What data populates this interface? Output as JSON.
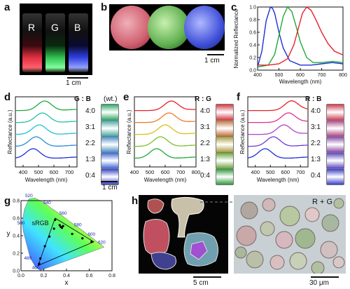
{
  "panels": {
    "a": {
      "letter": "a",
      "vial_labels": [
        "R",
        "G",
        "B"
      ],
      "scale": "1 cm"
    },
    "b": {
      "letter": "b",
      "scale": "1 cm"
    },
    "c": {
      "letter": "c"
    },
    "d": {
      "letter": "d",
      "header": "G : B",
      "unit": "(wt.)",
      "ratios": [
        "4:0",
        "3:1",
        "2:2",
        "1:3",
        "0:4"
      ],
      "scale": "1 cm"
    },
    "e": {
      "letter": "e",
      "header": "R : G",
      "ratios": [
        "4:0",
        "3:1",
        "2:2",
        "1:3",
        "0:4"
      ],
      "scale": "1 cm"
    },
    "f": {
      "letter": "f",
      "header": "R : B",
      "ratios": [
        "4:0",
        "3:1",
        "2:2",
        "1:3",
        "0:4"
      ],
      "scale": "1 cm"
    },
    "g": {
      "letter": "g",
      "srgb_label": "sRGB"
    },
    "h": {
      "letter": "h",
      "scale_left": "5 cm",
      "scale_right": "30 μm",
      "mix_label": "R + G"
    }
  },
  "colors": {
    "red": "#e8202a",
    "green": "#1faa3a",
    "blue": "#1e2fd8",
    "swatches_d": [
      "#2fa86a",
      "#46a8a0",
      "#4a8ec8",
      "#3f6ad8",
      "#3a44c8"
    ],
    "swatches_e": [
      "#d63a44",
      "#c57240",
      "#a89a3a",
      "#6ea63c",
      "#2e9a3e"
    ],
    "swatches_f": [
      "#d04050",
      "#b24a88",
      "#8a4aa8",
      "#5e48c2",
      "#3c40c8"
    ]
  },
  "chart_data": [
    {
      "panel": "c",
      "type": "line",
      "xlabel": "Wavelength (nm)",
      "ylabel": "Normalized Reflectance",
      "xlim": [
        400,
        800
      ],
      "ylim": [
        0,
        1.0
      ],
      "xticks": [
        400,
        500,
        600,
        700,
        800
      ],
      "yticks": [
        0.0,
        0.2,
        0.4,
        0.6,
        0.8,
        1.0
      ],
      "series": [
        {
          "color": "#1e2fd8",
          "x": [
            400,
            420,
            440,
            460,
            470,
            480,
            500,
            520,
            550,
            600,
            650,
            700,
            750,
            800
          ],
          "y": [
            0.05,
            0.3,
            0.78,
            1.0,
            0.98,
            0.9,
            0.6,
            0.35,
            0.15,
            0.08,
            0.08,
            0.1,
            0.12,
            0.1
          ]
        },
        {
          "color": "#1faa3a",
          "x": [
            400,
            450,
            480,
            500,
            520,
            540,
            560,
            580,
            600,
            630,
            660,
            700,
            750,
            800
          ],
          "y": [
            0.05,
            0.08,
            0.25,
            0.55,
            0.85,
            1.0,
            0.93,
            0.7,
            0.45,
            0.2,
            0.12,
            0.12,
            0.14,
            0.12
          ]
        },
        {
          "color": "#e8202a",
          "x": [
            400,
            450,
            500,
            540,
            570,
            590,
            610,
            630,
            650,
            670,
            700,
            730,
            760,
            800
          ],
          "y": [
            0.08,
            0.08,
            0.1,
            0.18,
            0.4,
            0.65,
            0.9,
            1.0,
            0.95,
            0.82,
            0.6,
            0.42,
            0.3,
            0.24
          ]
        }
      ]
    },
    {
      "panel": "d",
      "type": "line",
      "xlabel": "Wavelength (nm)",
      "ylabel": "Reflectance (a.u.)",
      "xlim": [
        350,
        750
      ],
      "xticks": [
        400,
        500,
        600,
        700
      ],
      "series": [
        {
          "name": "4:0",
          "color": "#1faa3a",
          "peak": 540,
          "offset": 4
        },
        {
          "name": "3:1",
          "color": "#22c4a0",
          "peak": 525,
          "offset": 3
        },
        {
          "name": "2:2",
          "color": "#1ec0d8",
          "peak": 505,
          "offset": 2
        },
        {
          "name": "1:3",
          "color": "#2a8cd8",
          "peak": 485,
          "offset": 1
        },
        {
          "name": "0:4",
          "color": "#1e2fd8",
          "peak": 465,
          "offset": 0
        }
      ]
    },
    {
      "panel": "e",
      "type": "line",
      "xlabel": "Wavelength (nm)",
      "ylabel": "Reflectance (a.u.)",
      "xlim": [
        400,
        800
      ],
      "xticks": [
        400,
        500,
        600,
        700,
        800
      ],
      "series": [
        {
          "name": "4:0",
          "color": "#e8202a",
          "peak": 640,
          "offset": 4
        },
        {
          "name": "3:1",
          "color": "#f07820",
          "peak": 625,
          "offset": 3
        },
        {
          "name": "2:2",
          "color": "#d8c018",
          "peak": 600,
          "offset": 2
        },
        {
          "name": "1:3",
          "color": "#7ac02a",
          "peak": 570,
          "offset": 1
        },
        {
          "name": "0:4",
          "color": "#1faa3a",
          "peak": 545,
          "offset": 0
        }
      ]
    },
    {
      "panel": "f",
      "type": "line",
      "xlabel": "Wavelength (nm)",
      "ylabel": "Reflectance (a.u.)",
      "xlim": [
        350,
        750
      ],
      "xticks": [
        400,
        500,
        600,
        700
      ],
      "series": [
        {
          "name": "4:0",
          "color": "#e8202a",
          "peak": 640,
          "offset": 4
        },
        {
          "name": "3:1",
          "color": "#e0308a",
          "peak": 620,
          "offset": 3
        },
        {
          "name": "2:2",
          "color": "#b040d0",
          "peak": 590,
          "offset": 2
        },
        {
          "name": "1:3",
          "color": "#6a3ad8",
          "peak": 520,
          "offset": 1
        },
        {
          "name": "0:4",
          "color": "#1e2fd8",
          "peak": 465,
          "offset": 0
        }
      ]
    },
    {
      "panel": "g",
      "type": "scatter",
      "xlabel": "x",
      "ylabel": "y",
      "xlim": [
        0,
        0.8
      ],
      "ylim": [
        0,
        0.8
      ],
      "xticks": [
        0.0,
        0.2,
        0.4,
        0.6,
        0.8
      ],
      "yticks": [
        0.0,
        0.2,
        0.4,
        0.6,
        0.8
      ],
      "wavelength_labels": [
        "520",
        "540",
        "560",
        "580",
        "600",
        "620",
        "500",
        "480",
        "460"
      ],
      "srgb_triangle": [
        [
          0.64,
          0.33
        ],
        [
          0.3,
          0.6
        ],
        [
          0.15,
          0.06
        ]
      ],
      "points": [
        [
          0.62,
          0.33
        ],
        [
          0.54,
          0.37
        ],
        [
          0.45,
          0.42
        ],
        [
          0.36,
          0.49
        ],
        [
          0.3,
          0.58
        ],
        [
          0.29,
          0.48
        ],
        [
          0.25,
          0.39
        ],
        [
          0.21,
          0.28
        ],
        [
          0.17,
          0.14
        ],
        [
          0.16,
          0.08
        ],
        [
          0.34,
          0.52
        ],
        [
          0.35,
          0.5
        ],
        [
          0.37,
          0.51
        ]
      ]
    }
  ]
}
